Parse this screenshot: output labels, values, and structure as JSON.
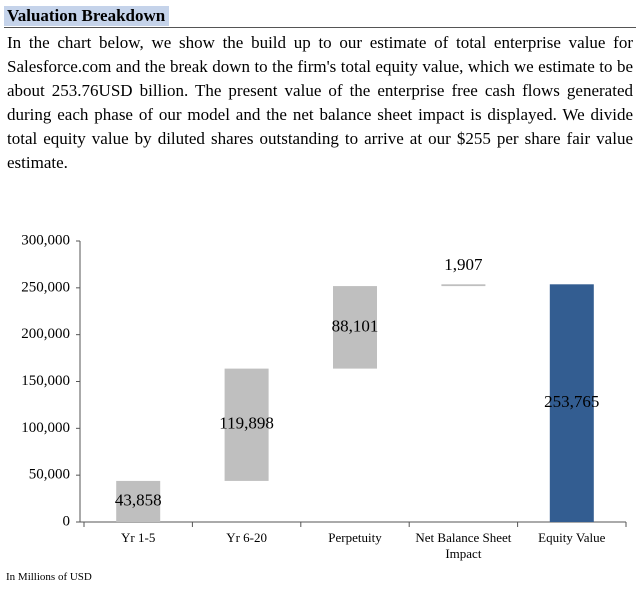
{
  "header": {
    "title": "Valuation Breakdown",
    "paragraph": "In the chart below, we show the build up to our estimate of total enterprise value for Salesforce.com and the break down to the firm's total equity value, which we estimate to be about 253.76USD billion. The present value of the enterprise free cash flows generated during each phase of our model and the net balance sheet impact is displayed. We divide total equity value by diluted shares outstanding to arrive at our $255 per share fair value estimate."
  },
  "chart_data": {
    "type": "waterfall",
    "categories": [
      "Yr 1-5",
      "Yr 6-20",
      "Perpetuity",
      "Net Balance Sheet Impact",
      "Equity Value"
    ],
    "values": [
      43858,
      119898,
      88101,
      1907,
      253765
    ],
    "value_labels": [
      "43,858",
      "119,898",
      "88,101",
      "1,907",
      "253,765"
    ],
    "is_total": [
      false,
      false,
      false,
      false,
      true
    ],
    "colors": [
      "#bfbfbf",
      "#bfbfbf",
      "#bfbfbf",
      "#bfbfbf",
      "#335d91"
    ],
    "ylim": [
      0,
      300000
    ],
    "yticks": [
      0,
      {
        "value": 50000,
        "label": "50,000"
      },
      {
        "value": 100000,
        "label": "100,000"
      },
      {
        "value": 150000,
        "label": "150,000"
      },
      {
        "value": 200000,
        "label": "200,000"
      },
      {
        "value": 250000,
        "label": "250,000"
      },
      {
        "value": 300000,
        "label": "300,000"
      }
    ]
  },
  "footnote": "In Millions of USD"
}
